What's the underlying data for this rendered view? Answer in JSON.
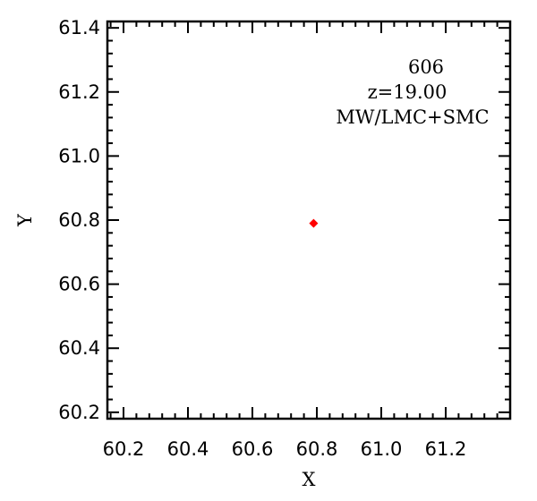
{
  "chart_data": {
    "type": "scatter",
    "title": "",
    "xlabel": "X",
    "ylabel": "Y",
    "xlim": [
      60.15,
      61.4
    ],
    "ylim": [
      60.18,
      61.42
    ],
    "x_ticks": [
      60.2,
      60.4,
      60.6,
      60.8,
      61.0,
      61.2
    ],
    "x_tick_labels": [
      "60.2",
      "60.4",
      "60.6",
      "60.8",
      "61.0",
      "61.2"
    ],
    "y_ticks": [
      60.2,
      60.4,
      60.6,
      60.8,
      61.0,
      61.2,
      61.4
    ],
    "y_tick_labels": [
      "60.2",
      "60.4",
      "60.6",
      "60.8",
      "61.0",
      "61.2",
      "61.4"
    ],
    "minor_ticks_per_major": 5,
    "grid": false,
    "legend": "none",
    "series": [
      {
        "marker": "diamond",
        "color": "#ff0000",
        "points": [
          {
            "x": 60.79,
            "y": 60.79
          }
        ]
      }
    ],
    "annotations": [
      "606",
      "z=19.00",
      "MW/LMC+SMC"
    ]
  }
}
